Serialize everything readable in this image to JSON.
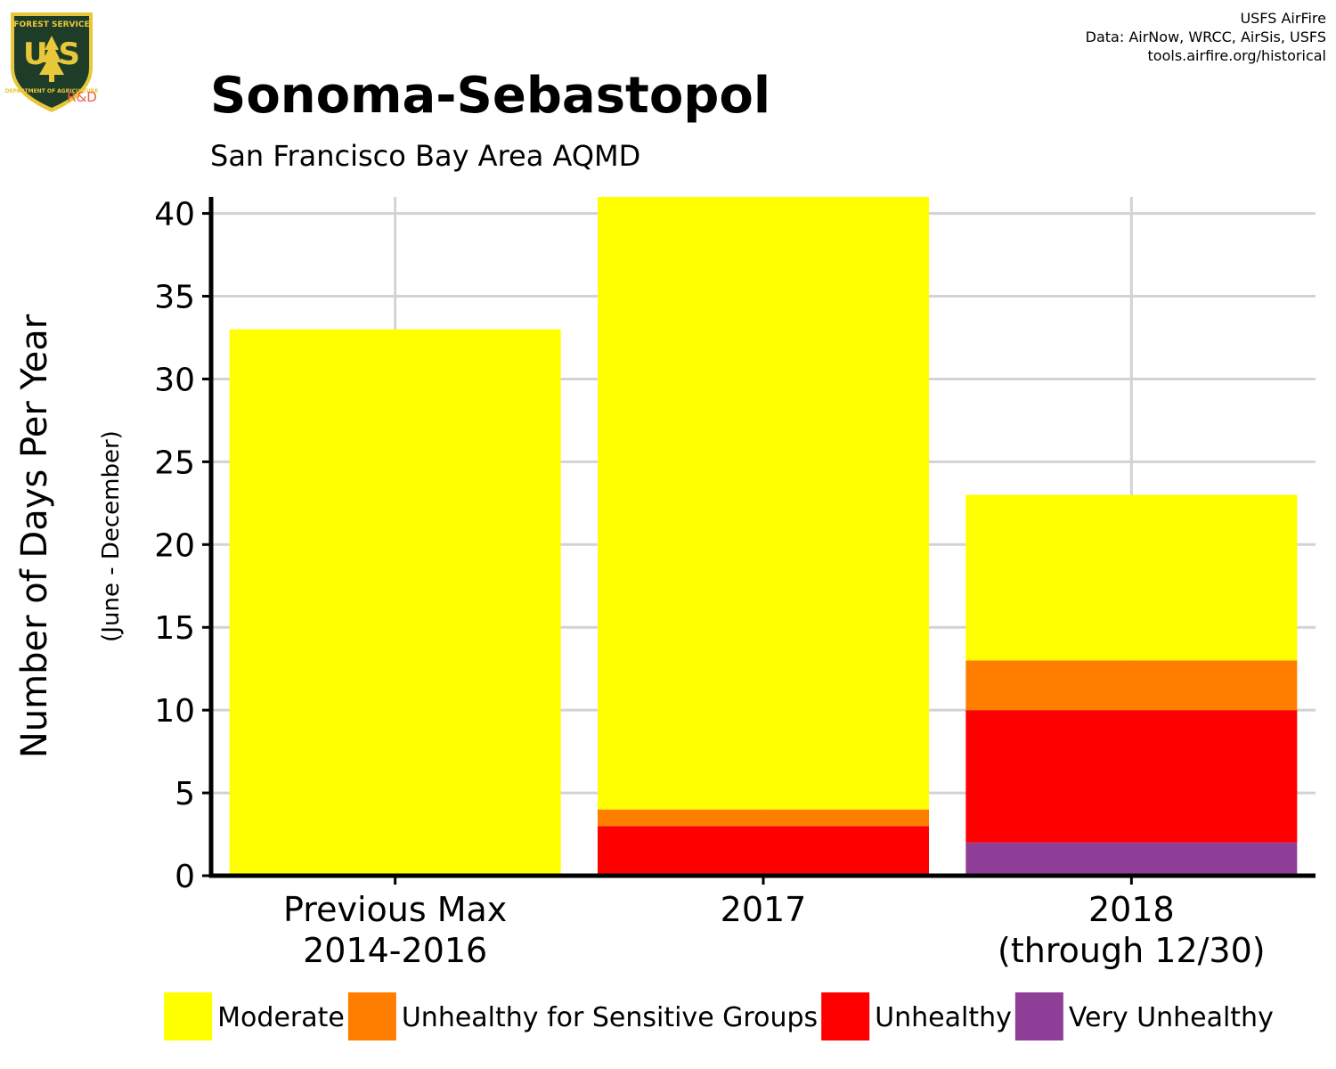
{
  "logo": {
    "top_text": "FOREST SERVICE",
    "letters": "U S",
    "bottom_text": "DEPARTMENT OF AGRICULTURE",
    "rd": "R&D",
    "colors": {
      "shield": "#1e3d28",
      "border": "#e8c83a",
      "rd": "#e8604a"
    }
  },
  "credits": [
    "USFS AirFire",
    "Data: AirNow, WRCC, AirSis, USFS",
    "tools.airfire.org/historical"
  ],
  "chart_data": {
    "type": "bar",
    "stacked": true,
    "title": "Sonoma-Sebastopol",
    "subtitle": "San Francisco Bay Area AQMD",
    "ylabel": "Number of Days Per Year",
    "ylabel_sub": "(June - December)",
    "ylim": [
      0,
      41
    ],
    "yticks": [
      0,
      5,
      10,
      15,
      20,
      25,
      30,
      35,
      40
    ],
    "grid": true,
    "legend_position": "bottom",
    "categories": [
      [
        "Previous Max",
        "2014-2016"
      ],
      [
        "2017"
      ],
      [
        "2018",
        "(through 12/30)"
      ]
    ],
    "series": [
      {
        "name": "Very Unhealthy",
        "color": "#8f3f97",
        "values": [
          0,
          0,
          2
        ]
      },
      {
        "name": "Unhealthy",
        "color": "#ff0000",
        "values": [
          0,
          3,
          8
        ]
      },
      {
        "name": "Unhealthy for Sensitive Groups",
        "color": "#ff7e00",
        "values": [
          0,
          1,
          3
        ]
      },
      {
        "name": "Moderate",
        "color": "#ffff00",
        "values": [
          33,
          37,
          10
        ]
      }
    ],
    "legend_order": [
      "Moderate",
      "Unhealthy for Sensitive Groups",
      "Unhealthy",
      "Very Unhealthy"
    ]
  }
}
